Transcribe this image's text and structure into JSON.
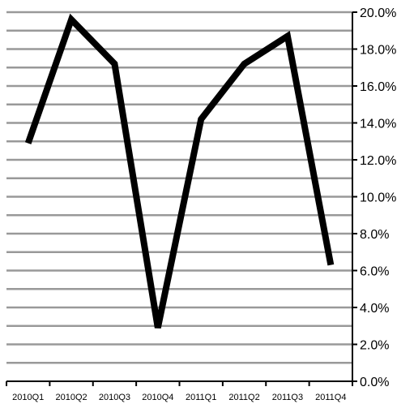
{
  "chart_data": {
    "type": "line",
    "categories": [
      "2010Q1",
      "2010Q2",
      "2010Q3",
      "2010Q4",
      "2011Q1",
      "2011Q2",
      "2011Q3",
      "2011Q4"
    ],
    "series": [
      {
        "values": [
          12.9,
          19.6,
          17.2,
          2.9,
          14.2,
          17.2,
          18.7,
          6.3
        ]
      }
    ],
    "y_tick_labels": [
      "0.0%",
      "2.0%",
      "4.0%",
      "6.0%",
      "8.0%",
      "10.0%",
      "12.0%",
      "14.0%",
      "16.0%",
      "18.0%",
      "20.0%"
    ],
    "ylim": [
      0,
      20
    ],
    "y_axis_side": "right",
    "grid": true,
    "title": "",
    "xlabel": "",
    "ylabel": "",
    "colors": {
      "line": "#000000",
      "grid": "#999999",
      "axis": "#000000"
    }
  }
}
